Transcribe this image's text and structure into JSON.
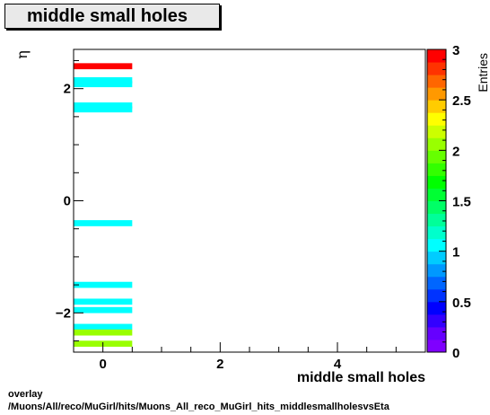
{
  "title": "middle small holes",
  "footer": {
    "line1": "overlay",
    "line2": "/Muons/All/reco/MuGirl/hits/Muons_All_reco_MuGirl_hits_middlesmallholesvsEta"
  },
  "chart_data": {
    "type": "heatmap",
    "title": "middle small holes",
    "xlabel": "middle small holes",
    "ylabel": "η",
    "xlim": [
      -0.5,
      5.5
    ],
    "ylim": [
      -2.7,
      2.7
    ],
    "x_ticks": [
      0,
      2,
      4
    ],
    "x_tick_labels": [
      "0",
      "2",
      "4"
    ],
    "y_ticks": [
      -2,
      0,
      2
    ],
    "y_tick_labels": [
      "−2",
      "0",
      "2"
    ],
    "colorbar": {
      "label": "Entries",
      "range": [
        0,
        3
      ],
      "ticks": [
        0,
        0.5,
        1,
        1.5,
        2,
        2.5,
        3
      ],
      "tick_labels": [
        "0",
        "0.5",
        "1",
        "1.5",
        "2",
        "2.5",
        "3"
      ],
      "colors": [
        "#7f00ff",
        "#6600ff",
        "#3300ff",
        "#0000ff",
        "#0033ff",
        "#0066ff",
        "#0099ff",
        "#00ccff",
        "#00ffff",
        "#00ffcc",
        "#00ff99",
        "#00ff66",
        "#00ff33",
        "#00ff00",
        "#33ff00",
        "#66ff00",
        "#99ff00",
        "#ccff00",
        "#ffff00",
        "#ffcc00",
        "#ff9900",
        "#ff6600",
        "#ff3300",
        "#ff0000"
      ]
    },
    "grid": false,
    "cells": [
      {
        "x": 0,
        "y": 2.4,
        "value": 3
      },
      {
        "x": 0,
        "y": 2.15,
        "value": 1
      },
      {
        "x": 0,
        "y": 2.08,
        "value": 1
      },
      {
        "x": 0,
        "y": 1.7,
        "value": 1
      },
      {
        "x": 0,
        "y": 1.63,
        "value": 1
      },
      {
        "x": 0,
        "y": -0.4,
        "value": 1
      },
      {
        "x": 0,
        "y": -1.5,
        "value": 1
      },
      {
        "x": 0,
        "y": -1.8,
        "value": 1
      },
      {
        "x": 0,
        "y": -1.95,
        "value": 1
      },
      {
        "x": 0,
        "y": -2.25,
        "value": 1
      },
      {
        "x": 0,
        "y": -2.35,
        "value": 2
      },
      {
        "x": 0,
        "y": -2.55,
        "value": 2
      }
    ]
  }
}
